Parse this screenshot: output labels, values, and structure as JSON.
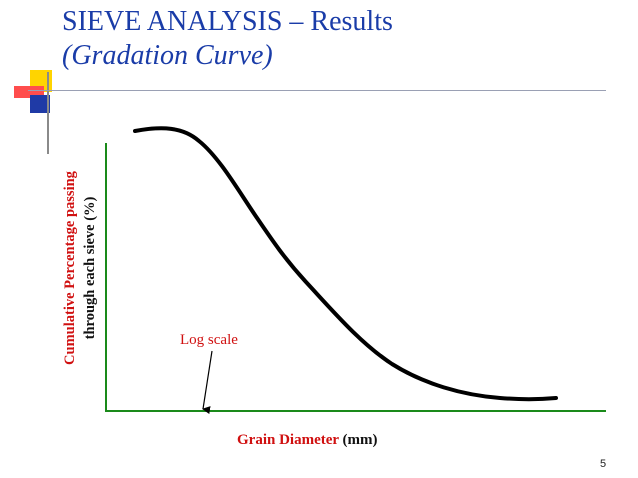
{
  "slide": {
    "title": "SIEVE ANALYSIS – Results",
    "subtitle": "(Gradation Curve)",
    "number": "5"
  },
  "diagram": {
    "y_axis_label_line1": "Cumulative Percentage passing",
    "y_axis_label_line2": "through each sieve (%)",
    "x_axis_label_name": "Grain Diameter",
    "x_axis_label_unit": "(mm)",
    "annotation": "Log scale",
    "curve_shape": "decreasing S-shaped gradation curve",
    "colors": {
      "title": "#1a3ca8",
      "axes": "#1a8a1a",
      "curve": "#000000",
      "label_red": "#d01010",
      "accent_yellow": "#ffd400",
      "accent_red": "#ff4d4d",
      "accent_blue": "#1f3aa6"
    }
  }
}
